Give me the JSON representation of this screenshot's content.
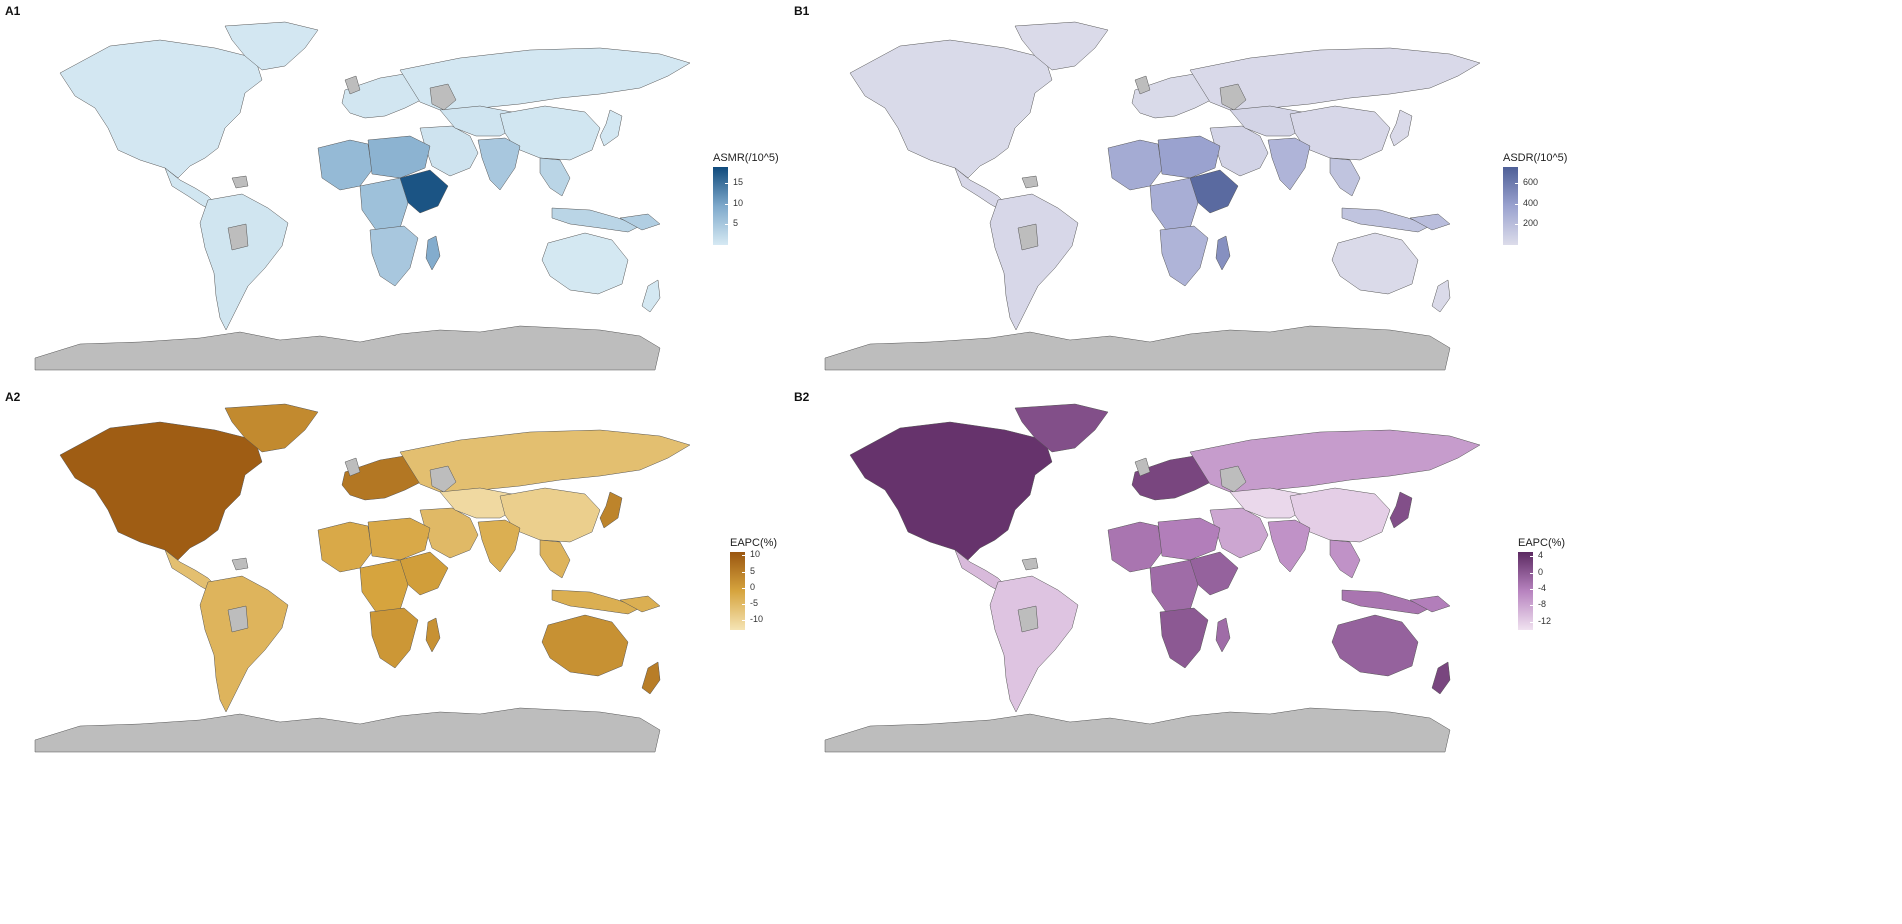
{
  "panels": [
    {
      "id": "A1",
      "label": "A1",
      "legend_title": "ASMR(/10^5)",
      "ticks": [
        {
          "label": "15",
          "value": 15
        },
        {
          "label": "10",
          "value": 10
        },
        {
          "label": "5",
          "value": 5
        }
      ],
      "range": [
        0,
        19
      ],
      "colors": {
        "low": "#d6e9f3",
        "mid": "#7ea9cb",
        "high": "#0f4a7c",
        "na": "#bdbdbd"
      }
    },
    {
      "id": "B1",
      "label": "B1",
      "legend_title": "ASDR(/10^5)",
      "ticks": [
        {
          "label": "600",
          "value": 600
        },
        {
          "label": "400",
          "value": 400
        },
        {
          "label": "200",
          "value": 200
        }
      ],
      "range": [
        0,
        760
      ],
      "colors": {
        "low": "#dcdcea",
        "mid": "#9aa2cf",
        "high": "#4e5f97",
        "na": "#bdbdbd"
      }
    },
    {
      "id": "A2",
      "label": "A2",
      "legend_title": "EAPC(%)",
      "ticks": [
        {
          "label": "10",
          "value": 10
        },
        {
          "label": "5",
          "value": 5
        },
        {
          "label": "0",
          "value": 0
        },
        {
          "label": "-5",
          "value": -5
        },
        {
          "label": "-10",
          "value": -10
        }
      ],
      "range": [
        -13,
        11
      ],
      "colors": {
        "low": "#f5e4b5",
        "mid": "#d6a43e",
        "high": "#9a5610",
        "na": "#bdbdbd"
      }
    },
    {
      "id": "B2",
      "label": "B2",
      "legend_title": "EAPC(%)",
      "ticks": [
        {
          "label": "4",
          "value": 4
        },
        {
          "label": "0",
          "value": 0
        },
        {
          "label": "-4",
          "value": -4
        },
        {
          "label": "-8",
          "value": -8
        },
        {
          "label": "-12",
          "value": -12
        }
      ],
      "range": [
        -14,
        5
      ],
      "colors": {
        "low": "#f0e2f0",
        "mid": "#b783bf",
        "high": "#5c2a62",
        "na": "#bdbdbd"
      }
    }
  ],
  "regions": {
    "A1": {
      "north_america": 0.3,
      "greenland": 0.3,
      "central_america": 0.5,
      "south_america": 0.6,
      "europe": 0.4,
      "russia": 0.3,
      "middle_east": 0.9,
      "west_africa": 7,
      "sahel": 8,
      "east_africa": 18,
      "central_africa": 6,
      "southern_africa": 5,
      "madagascar": 9,
      "south_asia": 5,
      "central_asia": 0.8,
      "china": 0.5,
      "southeast_asia": 3,
      "japan": 0.3,
      "indonesia": 3,
      "australia": 0.2,
      "new_zealand": 0.2,
      "png": 4
    },
    "B1": {
      "north_america": 15,
      "greenland": 10,
      "central_america": 30,
      "south_america": 30,
      "europe": 15,
      "russia": 20,
      "middle_east": 60,
      "west_africa": 320,
      "sahel": 380,
      "east_africa": 700,
      "central_africa": 300,
      "southern_africa": 260,
      "madagascar": 480,
      "south_asia": 260,
      "central_asia": 50,
      "china": 30,
      "southeast_asia": 160,
      "japan": 10,
      "indonesia": 160,
      "australia": 10,
      "new_zealand": 10,
      "png": 200
    },
    "A2": {
      "north_america": 10,
      "greenland": 3,
      "central_america": -6,
      "south_america": -4,
      "europe": 6,
      "russia": -6,
      "middle_east": -5,
      "west_africa": -2,
      "sahel": -2,
      "east_africa": 0,
      "central_africa": -1,
      "southern_africa": 1,
      "madagascar": 2,
      "south_asia": -3,
      "central_asia": -11,
      "china": -9,
      "southeast_asia": -4,
      "japan": 4,
      "indonesia": -3,
      "australia": 2,
      "new_zealand": 5,
      "png": -3
    },
    "B2": {
      "north_america": 4,
      "greenland": 1,
      "central_america": -10,
      "south_america": -11,
      "europe": 2,
      "russia": -7,
      "middle_east": -8,
      "west_africa": -3,
      "sahel": -4,
      "east_africa": -1,
      "central_africa": -2,
      "southern_africa": 0,
      "madagascar": -2,
      "south_asia": -6,
      "central_asia": -13,
      "china": -12,
      "southeast_asia": -6,
      "japan": 1,
      "indonesia": -3,
      "australia": -1,
      "new_zealand": 2,
      "png": -4
    }
  }
}
